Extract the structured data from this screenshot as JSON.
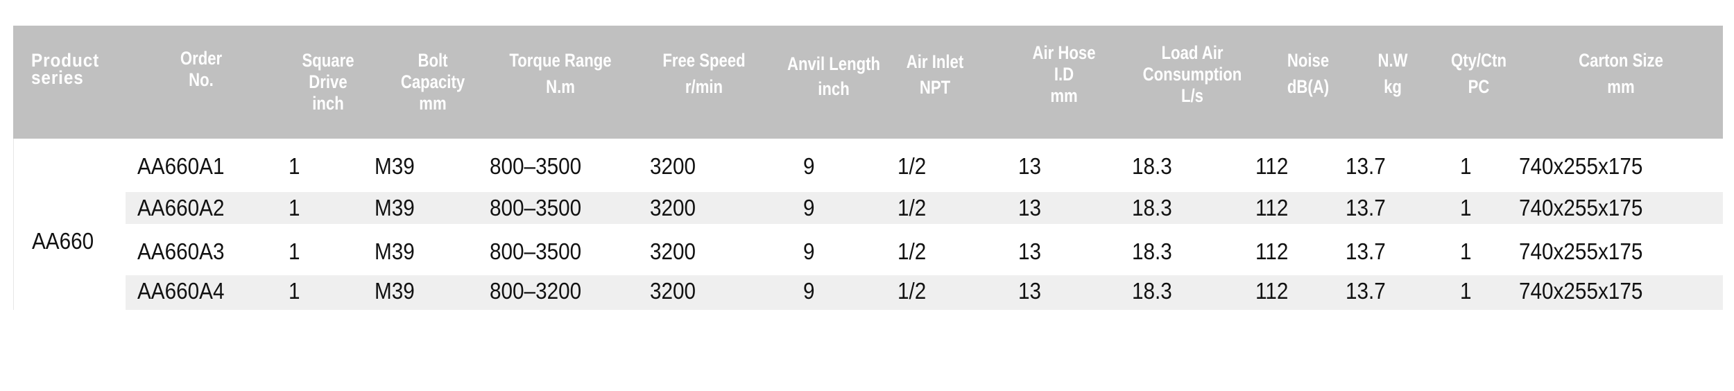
{
  "headers": [
    [
      "Product",
      "series"
    ],
    [
      "Order",
      "No."
    ],
    [
      "Square",
      "Drive",
      "inch"
    ],
    [
      "Bolt",
      "Capacity",
      "mm"
    ],
    [
      "Torque Range",
      "N.m"
    ],
    [
      "Free Speed",
      "r/min"
    ],
    [
      "Anvil Length",
      "inch"
    ],
    [
      "Air Inlet",
      "NPT"
    ],
    [
      "Air Hose",
      "I.D",
      "mm"
    ],
    [
      "Load Air",
      "Consumption",
      "L/s"
    ],
    [
      "Noise",
      "dB(A)"
    ],
    [
      "N.W",
      "kg"
    ],
    [
      "Qty/Ctn",
      "PC"
    ],
    [
      "Carton Size",
      "mm"
    ]
  ],
  "series": "AA660",
  "rows": [
    [
      "AA660A1",
      "1",
      "M39",
      "800–3500",
      "3200",
      "9",
      "1/2",
      "13",
      "18.3",
      "112",
      "13.7",
      "1",
      "740x255x175"
    ],
    [
      "AA660A2",
      "1",
      "M39",
      "800–3500",
      "3200",
      "9",
      "1/2",
      "13",
      "18.3",
      "112",
      "13.7",
      "1",
      "740x255x175"
    ],
    [
      "AA660A3",
      "1",
      "M39",
      "800–3500",
      "3200",
      "9",
      "1/2",
      "13",
      "18.3",
      "112",
      "13.7",
      "1",
      "740x255x175"
    ],
    [
      "AA660A4",
      "1",
      "M39",
      "800–3200",
      "3200",
      "9",
      "1/2",
      "13",
      "18.3",
      "112",
      "13.7",
      "1",
      "740x255x175"
    ]
  ],
  "colors": {
    "header_bg": "#c0c0c0",
    "row_shade": "#efefef"
  }
}
